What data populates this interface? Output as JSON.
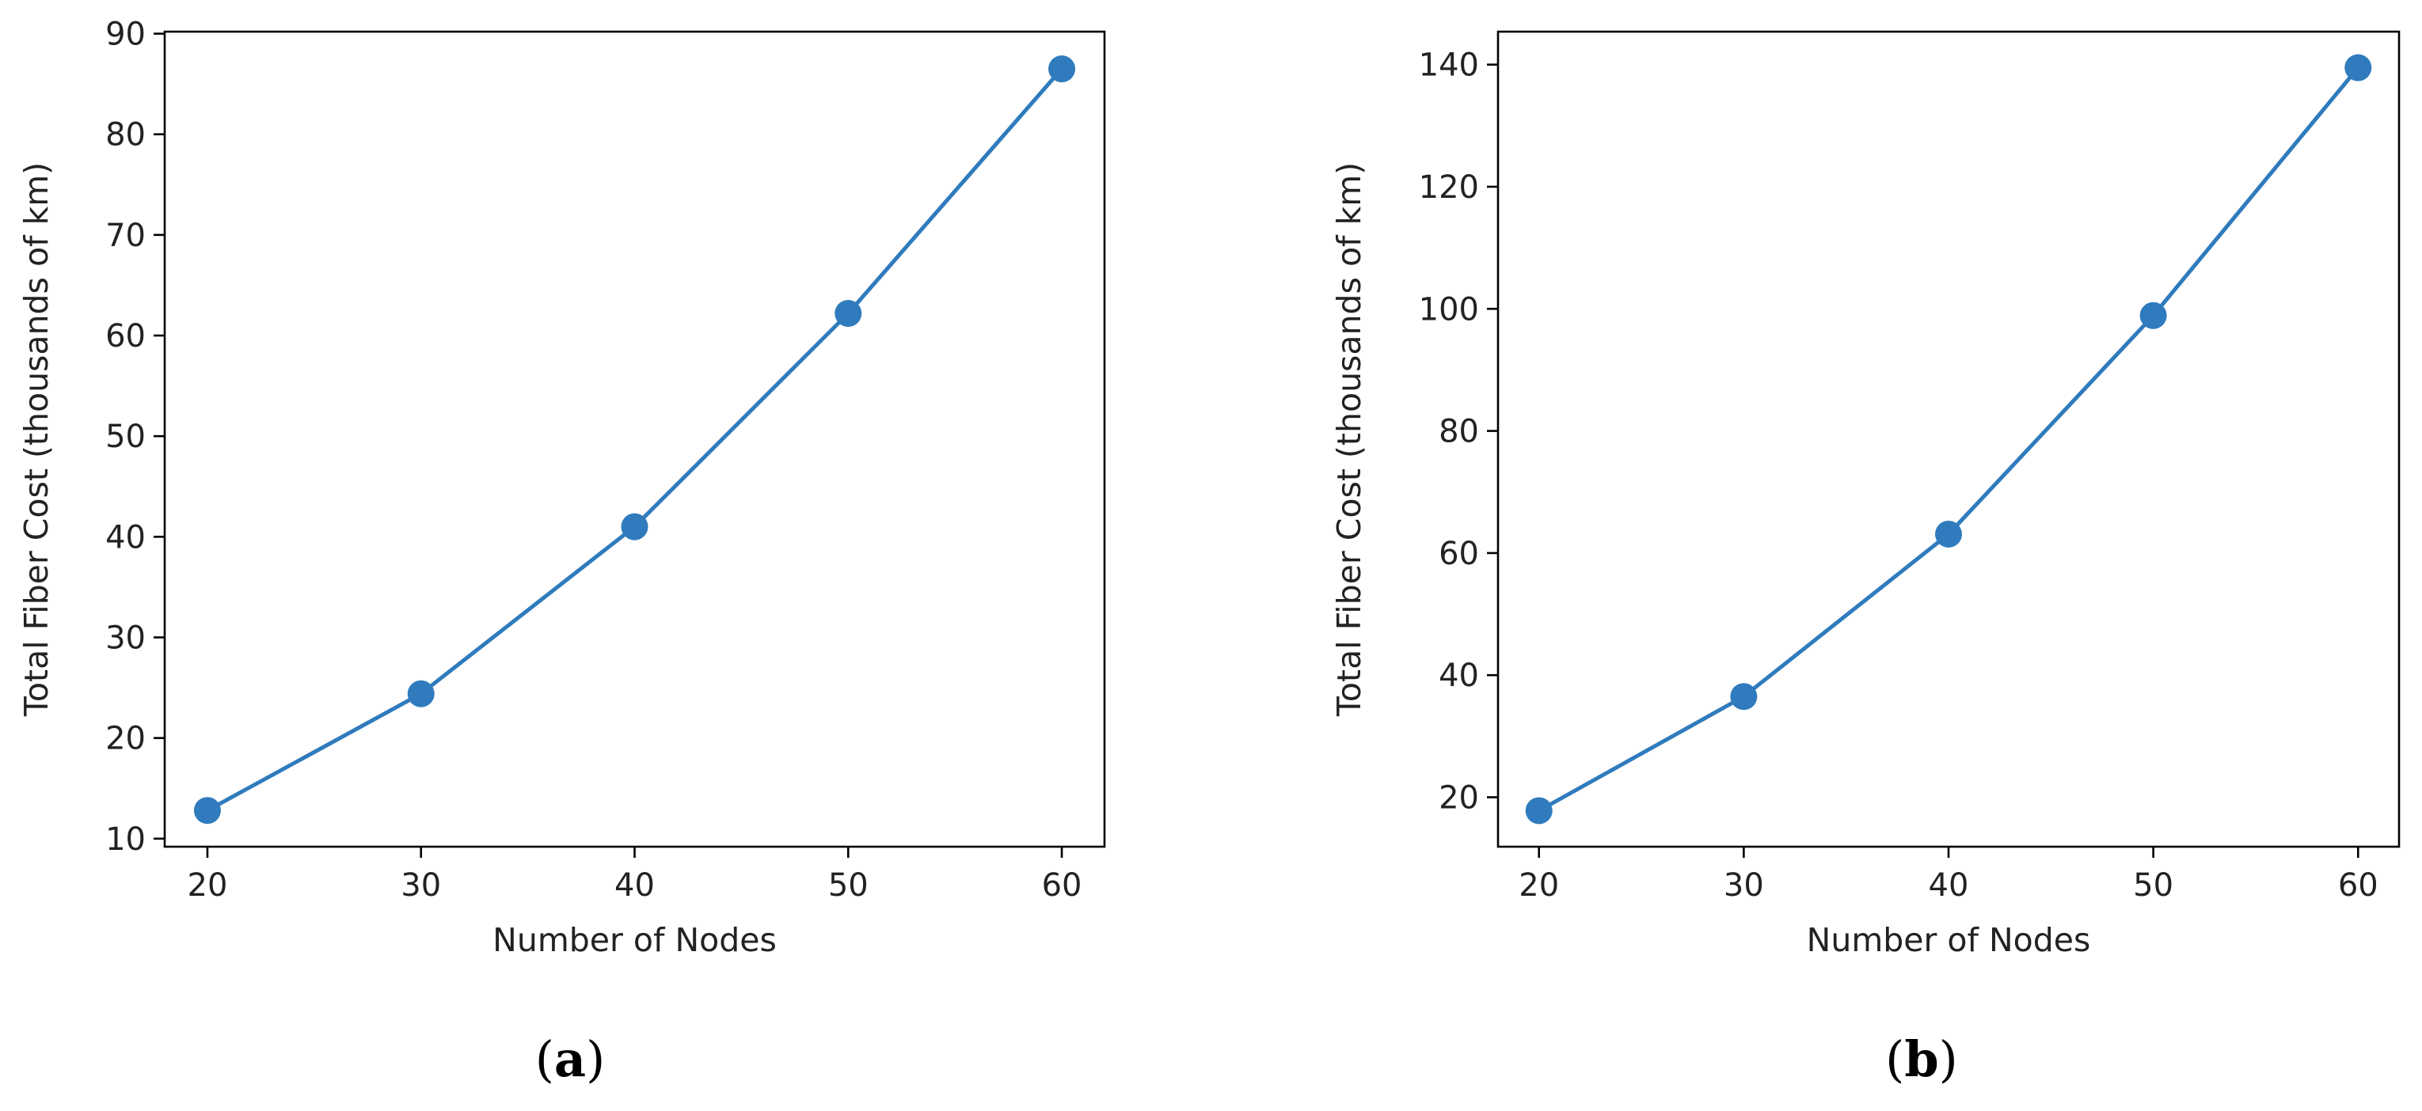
{
  "colors": {
    "series": "#2f7bbd",
    "axis": "#000000",
    "text": "#222222"
  },
  "chart_data": [
    {
      "type": "line",
      "panel_label": "a",
      "xlabel": "Number of Nodes",
      "ylabel": "Total Fiber Cost (thousands of km)",
      "x": [
        20,
        30,
        40,
        50,
        60
      ],
      "values": [
        12.8,
        24.4,
        41.0,
        62.2,
        86.5
      ],
      "xlim": [
        18,
        62
      ],
      "ylim": [
        9.2,
        90.2
      ],
      "xticks": [
        20,
        30,
        40,
        50,
        60
      ],
      "yticks": [
        10,
        20,
        30,
        40,
        50,
        60,
        70,
        80,
        90
      ],
      "marker": "circle",
      "grid": false
    },
    {
      "type": "line",
      "panel_label": "b",
      "xlabel": "Number of Nodes",
      "ylabel": "Total Fiber Cost (thousands of km)",
      "x": [
        20,
        30,
        40,
        50,
        60
      ],
      "values": [
        17.8,
        36.5,
        63.1,
        98.9,
        139.5
      ],
      "xlim": [
        18,
        62
      ],
      "ylim": [
        11.9,
        145.4
      ],
      "xticks": [
        20,
        30,
        40,
        50,
        60
      ],
      "yticks": [
        20,
        40,
        60,
        80,
        100,
        120,
        140
      ],
      "marker": "circle",
      "grid": false
    }
  ]
}
